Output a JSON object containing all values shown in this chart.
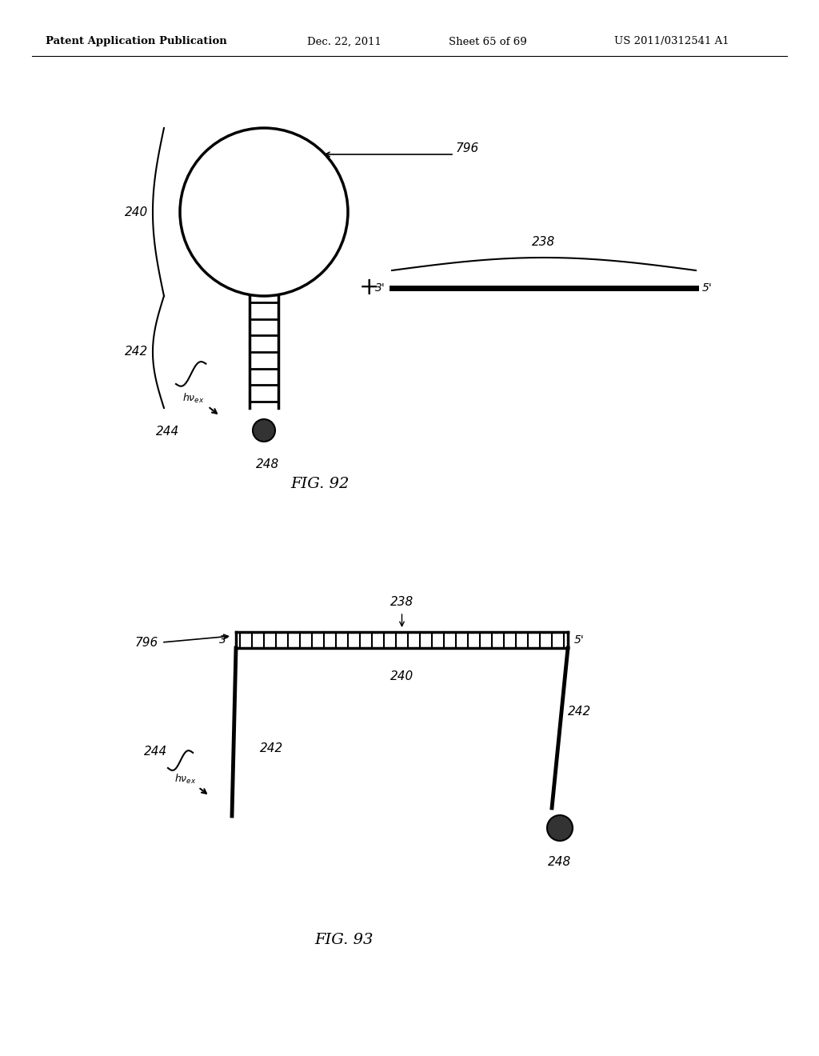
{
  "bg_color": "#ffffff",
  "header_text": "Patent Application Publication",
  "header_date": "Dec. 22, 2011",
  "header_sheet": "Sheet 65 of 69",
  "header_patent": "US 2011/0312541 A1",
  "fig92_label": "FIG. 92",
  "fig93_label": "FIG. 93"
}
